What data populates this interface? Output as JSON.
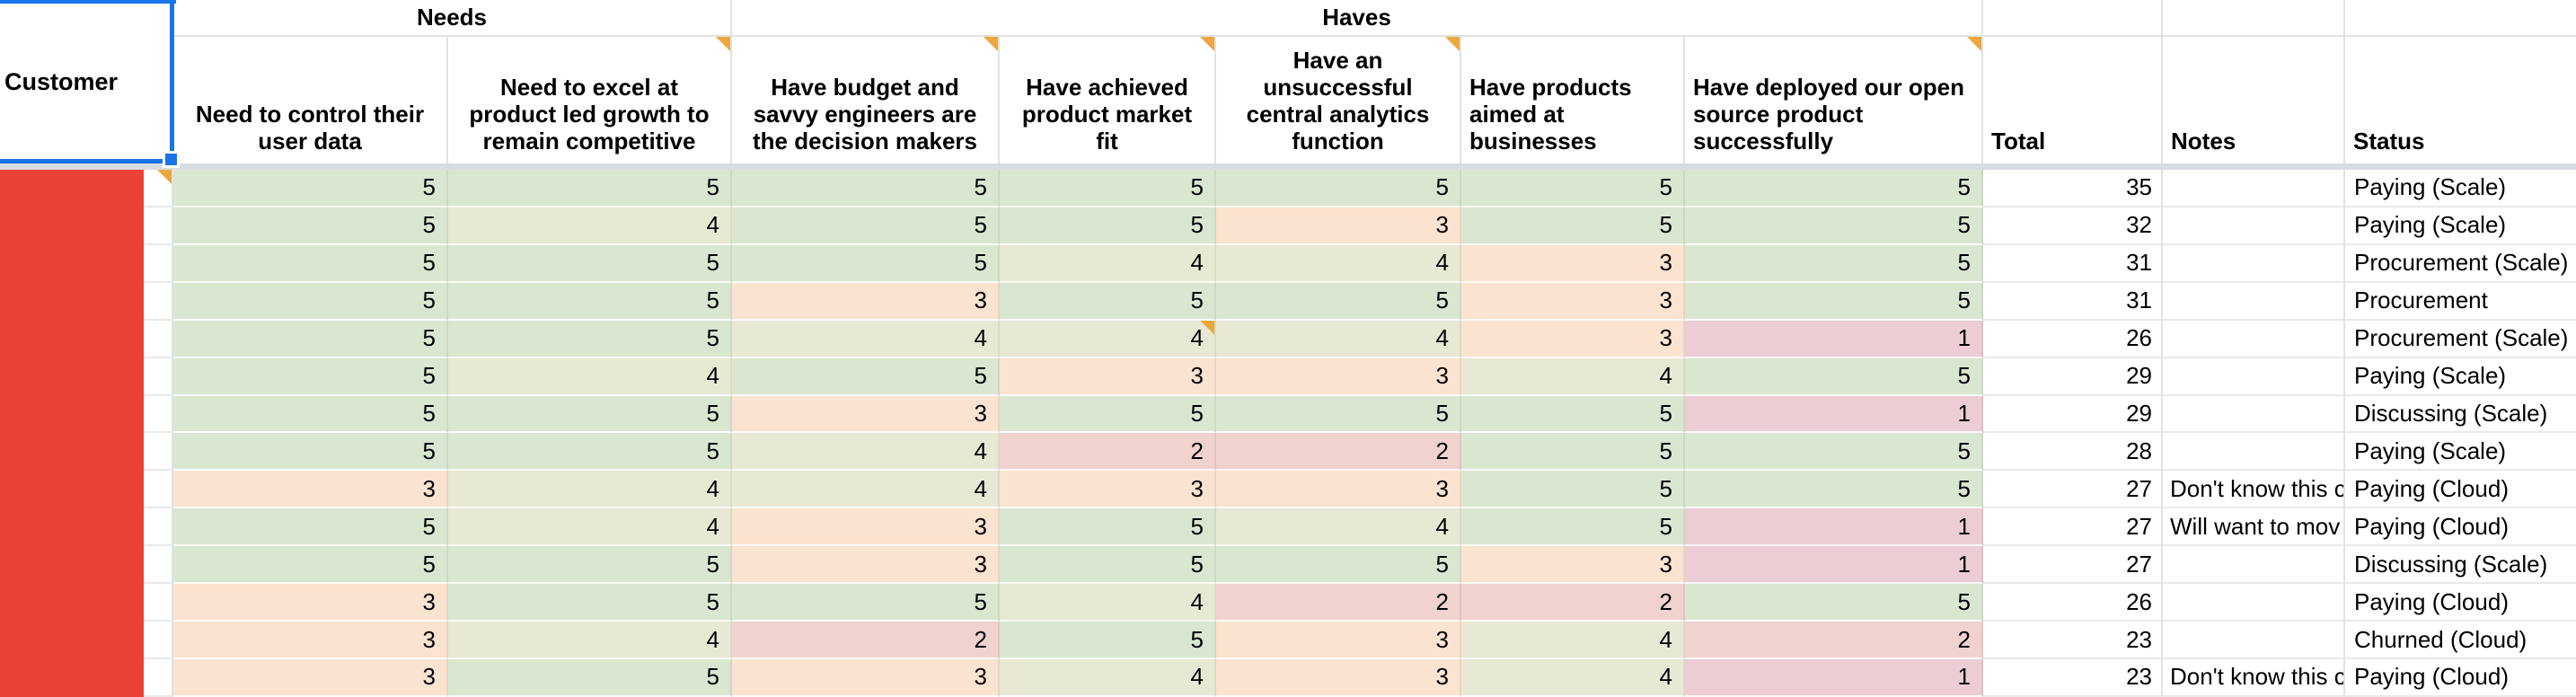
{
  "corner": {
    "label": "Customer"
  },
  "groups": {
    "needs": "Needs",
    "haves": "Haves"
  },
  "columns": [
    {
      "label": "Need to control their\nuser data",
      "note": false
    },
    {
      "label": "Need to excel at\nproduct led growth to\nremain competitive",
      "note": true
    },
    {
      "label": "Have budget and\nsavvy engineers are\nthe decision makers",
      "note": true
    },
    {
      "label": "Have achieved\nproduct market\nfit",
      "note": true
    },
    {
      "label": "Have an\nunsuccessful\ncentral analytics\nfunction",
      "note": true
    },
    {
      "label": "Have products\naimed at\nbusinesses",
      "note": false
    },
    {
      "label": "Have deployed our open\nsource product\nsuccessfully",
      "note": true
    }
  ],
  "extra_columns": {
    "total": "Total",
    "notes": "Notes",
    "status": "Status"
  },
  "rows": [
    {
      "scores": [
        5,
        5,
        5,
        5,
        5,
        5,
        5
      ],
      "total": 35,
      "note": "",
      "status": "Paying (Scale)",
      "customer_note": true
    },
    {
      "scores": [
        5,
        4,
        5,
        5,
        3,
        5,
        5
      ],
      "total": 32,
      "note": "",
      "status": "Paying (Scale)"
    },
    {
      "scores": [
        5,
        5,
        5,
        4,
        4,
        3,
        5
      ],
      "total": 31,
      "note": "",
      "status": "Procurement (Scale)"
    },
    {
      "scores": [
        5,
        5,
        3,
        5,
        5,
        3,
        5
      ],
      "total": 31,
      "note": "",
      "status": "Procurement"
    },
    {
      "scores": [
        5,
        5,
        4,
        4,
        4,
        3,
        1
      ],
      "total": 26,
      "note": "",
      "status": "Procurement (Scale)",
      "score_note_col": 3
    },
    {
      "scores": [
        5,
        4,
        5,
        3,
        3,
        4,
        5
      ],
      "total": 29,
      "note": "",
      "status": "Paying (Scale)"
    },
    {
      "scores": [
        5,
        5,
        3,
        5,
        5,
        5,
        1
      ],
      "total": 29,
      "note": "",
      "status": "Discussing (Scale)"
    },
    {
      "scores": [
        5,
        5,
        4,
        2,
        2,
        5,
        5
      ],
      "total": 28,
      "note": "",
      "status": "Paying (Scale)"
    },
    {
      "scores": [
        3,
        4,
        4,
        3,
        3,
        5,
        5
      ],
      "total": 27,
      "note": "Don't know this c",
      "status": "Paying (Cloud)"
    },
    {
      "scores": [
        5,
        4,
        3,
        5,
        4,
        5,
        1
      ],
      "total": 27,
      "note": "Will want to mov",
      "status": "Paying (Cloud)"
    },
    {
      "scores": [
        5,
        5,
        3,
        5,
        5,
        3,
        1
      ],
      "total": 27,
      "note": "",
      "status": "Discussing (Scale)"
    },
    {
      "scores": [
        3,
        5,
        5,
        4,
        2,
        2,
        5
      ],
      "total": 26,
      "note": "",
      "status": "Paying (Cloud)"
    },
    {
      "scores": [
        3,
        4,
        2,
        5,
        3,
        4,
        2
      ],
      "total": 23,
      "note": "",
      "status": "Churned (Cloud)"
    },
    {
      "scores": [
        3,
        5,
        3,
        4,
        3,
        4,
        1
      ],
      "total": 23,
      "note": "Don't know this c",
      "status": "Paying (Cloud)"
    }
  ],
  "score_colors": {
    "5": "#d9e7d1",
    "4": "#e7e9d5",
    "3": "#fae3d0",
    "2": "#f0d2ce",
    "1": "#eccdd4"
  },
  "accent_colors": {
    "selection_blue": "#1a73e8",
    "note_triangle_orange": "#eaa83e",
    "redaction_red": "#ea4335"
  }
}
